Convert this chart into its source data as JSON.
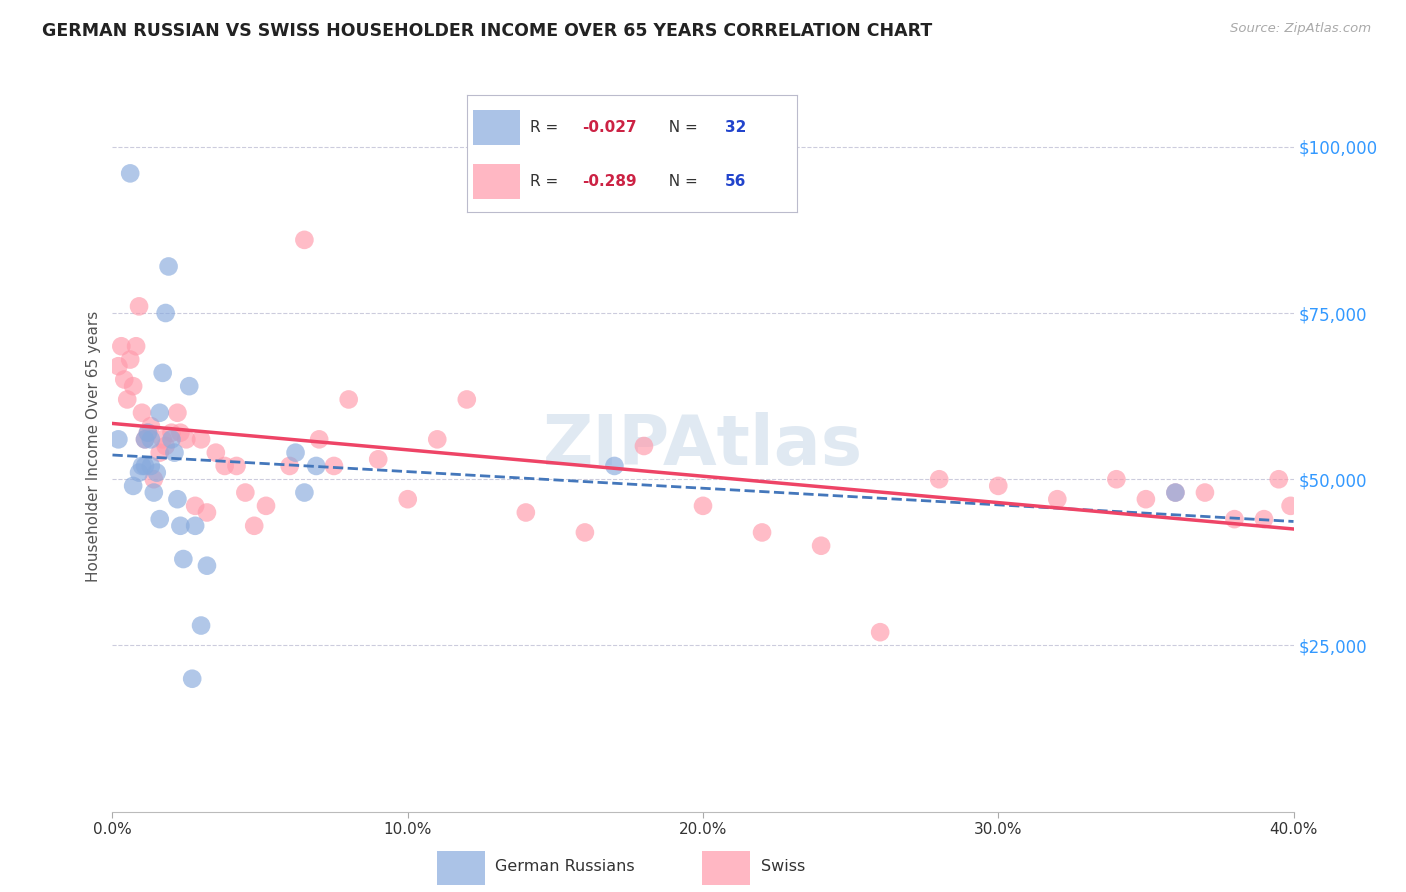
{
  "title": "GERMAN RUSSIAN VS SWISS HOUSEHOLDER INCOME OVER 65 YEARS CORRELATION CHART",
  "source": "Source: ZipAtlas.com",
  "ylabel": "Householder Income Over 65 years",
  "legend_label1": "German Russians",
  "legend_label2": "Swiss",
  "r1": -0.027,
  "n1": 32,
  "r2": -0.289,
  "n2": 56,
  "color_blue": "#88AADD",
  "color_pink": "#FF99AA",
  "trend_blue": "#4477BB",
  "trend_pink": "#EE4466",
  "background": "#FFFFFF",
  "grid_color": "#CCCCDD",
  "xlim": [
    0.0,
    0.4
  ],
  "ylim": [
    0,
    110000
  ],
  "yticks": [
    25000,
    50000,
    75000,
    100000
  ],
  "ytick_labels": [
    "$25,000",
    "$50,000",
    "$75,000",
    "$100,000"
  ],
  "ytick_color": "#3399FF",
  "xticks": [
    0.0,
    0.1,
    0.2,
    0.3,
    0.4
  ],
  "xtick_labels": [
    "0.0%",
    "10.0%",
    "20.0%",
    "30.0%",
    "40.0%"
  ],
  "german_russian_x": [
    0.002,
    0.006,
    0.007,
    0.009,
    0.01,
    0.011,
    0.011,
    0.012,
    0.013,
    0.013,
    0.014,
    0.015,
    0.016,
    0.016,
    0.017,
    0.018,
    0.019,
    0.02,
    0.021,
    0.022,
    0.023,
    0.024,
    0.026,
    0.027,
    0.028,
    0.03,
    0.032,
    0.062,
    0.065,
    0.069,
    0.17,
    0.36
  ],
  "german_russian_y": [
    56000,
    96000,
    49000,
    51000,
    52000,
    56000,
    52000,
    57000,
    56000,
    52000,
    48000,
    51000,
    44000,
    60000,
    66000,
    75000,
    82000,
    56000,
    54000,
    47000,
    43000,
    38000,
    64000,
    20000,
    43000,
    28000,
    37000,
    54000,
    48000,
    52000,
    52000,
    48000
  ],
  "swiss_x": [
    0.002,
    0.003,
    0.004,
    0.005,
    0.006,
    0.007,
    0.008,
    0.009,
    0.01,
    0.011,
    0.012,
    0.013,
    0.014,
    0.016,
    0.017,
    0.018,
    0.02,
    0.022,
    0.023,
    0.025,
    0.028,
    0.03,
    0.032,
    0.035,
    0.038,
    0.042,
    0.045,
    0.048,
    0.052,
    0.06,
    0.065,
    0.07,
    0.075,
    0.08,
    0.09,
    0.1,
    0.11,
    0.12,
    0.14,
    0.16,
    0.18,
    0.2,
    0.22,
    0.24,
    0.26,
    0.28,
    0.3,
    0.32,
    0.34,
    0.35,
    0.36,
    0.37,
    0.38,
    0.39,
    0.395,
    0.399
  ],
  "swiss_y": [
    67000,
    70000,
    65000,
    62000,
    68000,
    64000,
    70000,
    76000,
    60000,
    56000,
    57000,
    58000,
    50000,
    54000,
    56000,
    55000,
    57000,
    60000,
    57000,
    56000,
    46000,
    56000,
    45000,
    54000,
    52000,
    52000,
    48000,
    43000,
    46000,
    52000,
    86000,
    56000,
    52000,
    62000,
    53000,
    47000,
    56000,
    62000,
    45000,
    42000,
    55000,
    46000,
    42000,
    40000,
    27000,
    50000,
    49000,
    47000,
    50000,
    47000,
    48000,
    48000,
    44000,
    44000,
    50000,
    46000
  ]
}
